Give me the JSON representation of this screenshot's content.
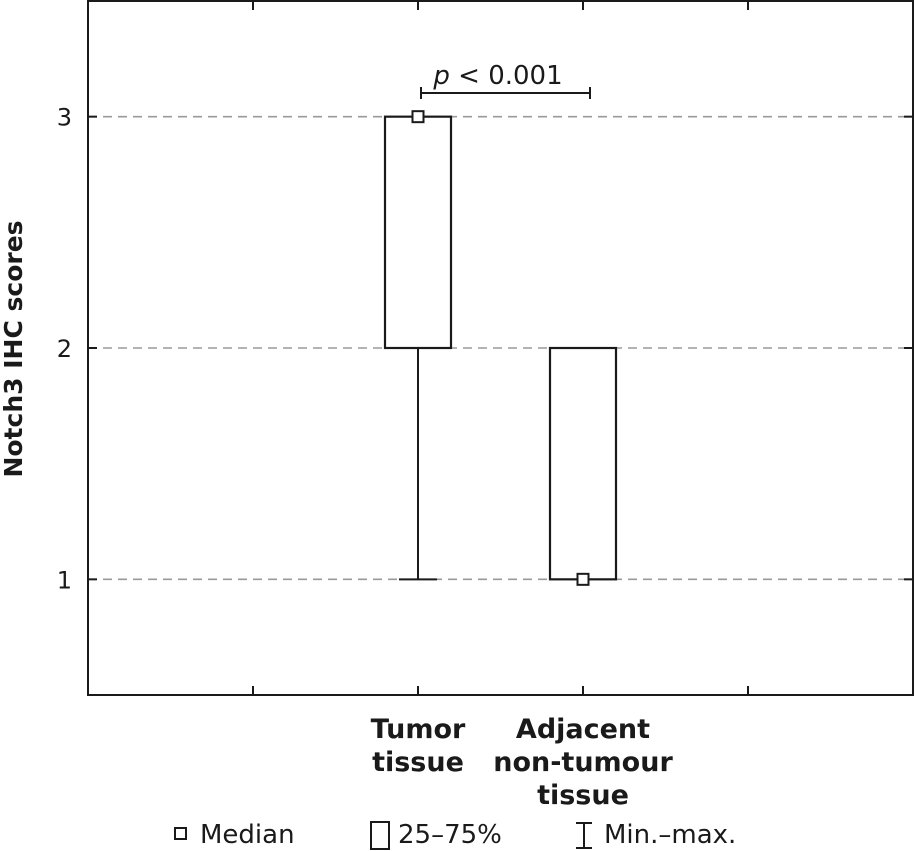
{
  "chart_data": {
    "type": "box",
    "ylabel": "Notch3 IHC scores",
    "xlabel": "",
    "ylim": [
      0.5,
      3.5
    ],
    "yticks": [
      1,
      2,
      3
    ],
    "grid": "horizontal dashed",
    "categories": [
      {
        "lines": [
          "Tumor",
          "tissue"
        ]
      },
      {
        "lines": [
          "Adjacent",
          "non-tumour",
          "tissue"
        ]
      }
    ],
    "series": [
      {
        "category_index": 0,
        "min": 1,
        "q1": 2,
        "median": 3,
        "q3": 3,
        "max": 3
      },
      {
        "category_index": 1,
        "min": 1,
        "q1": 1,
        "median": 1,
        "q3": 2,
        "max": 2
      }
    ],
    "annotation": {
      "p_symbol": "p",
      "p_rest": " < 0.001"
    },
    "legend": {
      "placement": "bottom",
      "items": [
        {
          "icon": "median-square-icon",
          "label": "Median"
        },
        {
          "icon": "box-icon",
          "label": "25–75%"
        },
        {
          "icon": "whisker-icon",
          "label": "Min.–max."
        }
      ]
    }
  }
}
